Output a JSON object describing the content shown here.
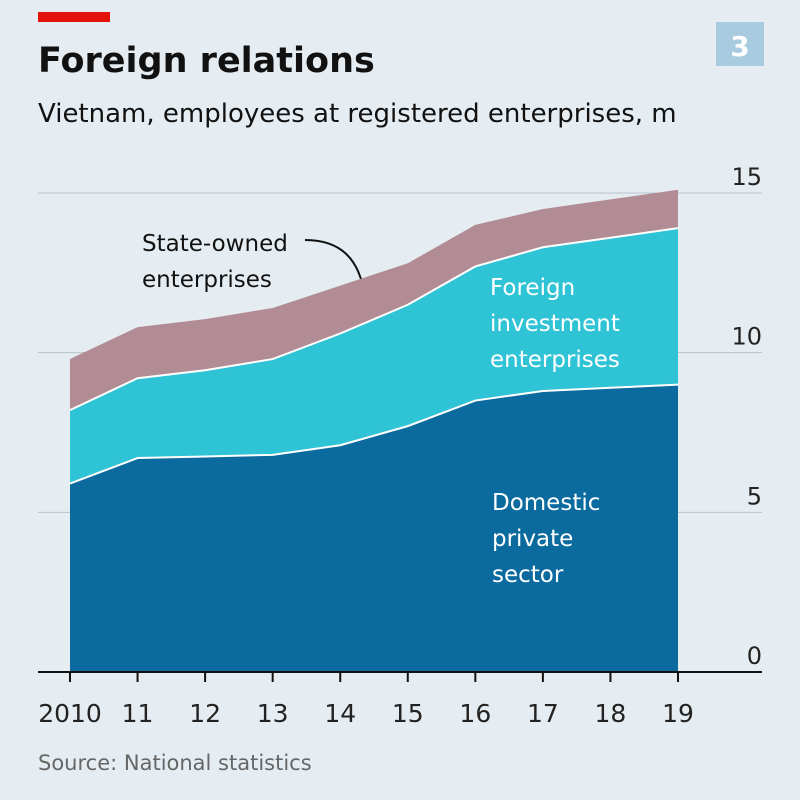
{
  "chart_data": {
    "type": "stacked_area",
    "chart_number": "3",
    "title": "Foreign relations",
    "subtitle": "Vietnam, employees at registered enterprises, m",
    "source": "Source: National statistics",
    "categories": [
      "2010",
      "11",
      "12",
      "13",
      "14",
      "15",
      "16",
      "17",
      "18",
      "19"
    ],
    "series": [
      {
        "name": "Domestic private sector",
        "color": "#0b6a9e",
        "values": [
          5.9,
          6.7,
          6.75,
          6.8,
          7.1,
          7.7,
          8.5,
          8.8,
          8.9,
          9.0
        ]
      },
      {
        "name": "Foreign investment enterprises",
        "color": "#2fc3d6",
        "values": [
          2.3,
          2.5,
          2.7,
          3.0,
          3.5,
          3.8,
          4.2,
          4.5,
          4.7,
          4.9
        ]
      },
      {
        "name": "State-owned enterprises",
        "color": "#b28c95",
        "values": [
          1.6,
          1.6,
          1.6,
          1.6,
          1.5,
          1.3,
          1.3,
          1.2,
          1.2,
          1.2
        ]
      }
    ],
    "ylim": [
      0,
      15
    ],
    "yticks": [
      0,
      5,
      10,
      15
    ],
    "grid": true
  }
}
